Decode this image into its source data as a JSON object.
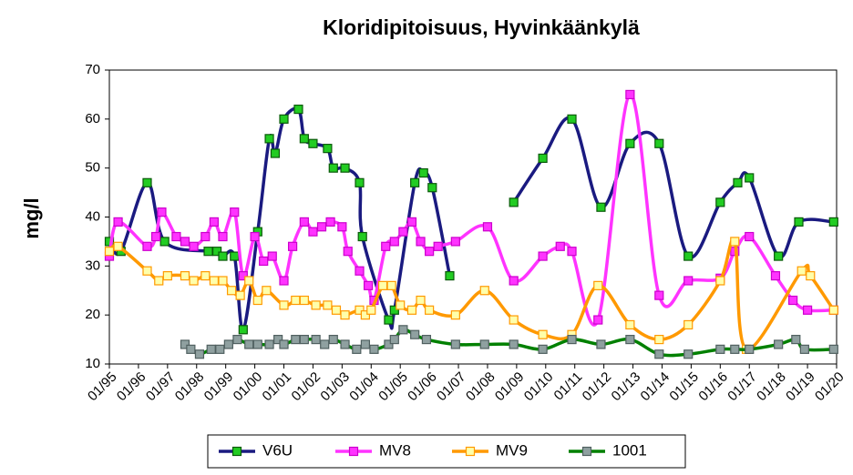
{
  "chart_data": {
    "type": "line",
    "title": "Kloridipitoisuus, Hyvinkäänkylä",
    "y_label": "mg/l",
    "xlim": [
      1995,
      2020
    ],
    "ylim": [
      10,
      70
    ],
    "yticks": [
      10,
      20,
      30,
      40,
      50,
      60,
      70
    ],
    "xticks": [
      {
        "value": 1995,
        "label": "01/95"
      },
      {
        "value": 1996,
        "label": "01/96"
      },
      {
        "value": 1997,
        "label": "01/97"
      },
      {
        "value": 1998,
        "label": "01/98"
      },
      {
        "value": 1999,
        "label": "01/99"
      },
      {
        "value": 2000,
        "label": "01/00"
      },
      {
        "value": 2001,
        "label": "01/01"
      },
      {
        "value": 2002,
        "label": "01/02"
      },
      {
        "value": 2003,
        "label": "01/03"
      },
      {
        "value": 2004,
        "label": "01/04"
      },
      {
        "value": 2005,
        "label": "01/05"
      },
      {
        "value": 2006,
        "label": "01/06"
      },
      {
        "value": 2007,
        "label": "01/07"
      },
      {
        "value": 2008,
        "label": "01/08"
      },
      {
        "value": 2009,
        "label": "01/09"
      },
      {
        "value": 2010,
        "label": "01/10"
      },
      {
        "value": 2011,
        "label": "01/11"
      },
      {
        "value": 2012,
        "label": "01/12"
      },
      {
        "value": 2013,
        "label": "01/13"
      },
      {
        "value": 2014,
        "label": "01/14"
      },
      {
        "value": 2015,
        "label": "01/15"
      },
      {
        "value": 2016,
        "label": "01/16"
      },
      {
        "value": 2017,
        "label": "01/17"
      },
      {
        "value": 2018,
        "label": "01/18"
      },
      {
        "value": 2019,
        "label": "01/19"
      },
      {
        "value": 2020,
        "label": "01/20"
      }
    ],
    "series": [
      {
        "name": "V6U",
        "color": "#1a1a80",
        "marker_fill": "#22cc22",
        "marker_stroke": "#0a5a0a",
        "x": [
          1995.0,
          1995.4,
          1996.3,
          1996.9,
          1998.4,
          1998.7,
          1998.9,
          1999.3,
          1999.6,
          2000.1,
          2000.5,
          2000.7,
          2001.0,
          2001.5,
          2001.7,
          2002.0,
          2002.5,
          2002.7,
          2003.1,
          2003.6,
          2003.7,
          2004.6,
          2004.8,
          2005.5,
          2005.8,
          2006.1,
          2006.7,
          null,
          2008.9,
          2009.9,
          2010.9,
          2011.9,
          2012.9,
          2013.9,
          2014.9,
          2016.0,
          2016.6,
          2017.0,
          2018.0,
          2018.7,
          2019.9
        ],
        "values": [
          35,
          33,
          47,
          35,
          33,
          33,
          32,
          32,
          17,
          37,
          56,
          53,
          60,
          62,
          56,
          55,
          54,
          50,
          50,
          47,
          36,
          19,
          21,
          47,
          49,
          46,
          28,
          null,
          43,
          52,
          60,
          42,
          55,
          55,
          32,
          43,
          47,
          48,
          32,
          39,
          39
        ]
      },
      {
        "name": "MV8",
        "color": "#ff33ff",
        "marker_fill": "#ff33ff",
        "marker_stroke": "#cc00cc",
        "x": [
          1995.0,
          1995.3,
          1996.3,
          1996.6,
          1996.8,
          1997.3,
          1997.6,
          1997.9,
          1998.3,
          1998.6,
          1998.9,
          1999.3,
          1999.6,
          2000.0,
          2000.3,
          2000.6,
          2001.0,
          2001.3,
          2001.7,
          2002.0,
          2002.3,
          2002.6,
          2003.0,
          2003.2,
          2003.6,
          2003.9,
          2004.1,
          2004.5,
          2004.8,
          2005.1,
          2005.4,
          2005.7,
          2006.0,
          2006.3,
          2006.9,
          2008.0,
          2008.9,
          2009.9,
          2010.5,
          2010.9,
          2011.8,
          2012.9,
          2013.9,
          2014.9,
          2016.0,
          2016.5,
          2017.0,
          2017.9,
          2018.5,
          2019.0,
          2019.9
        ],
        "values": [
          32,
          39,
          34,
          36,
          41,
          36,
          35,
          34,
          36,
          39,
          36,
          41,
          28,
          36,
          31,
          32,
          27,
          34,
          39,
          37,
          38,
          39,
          38,
          33,
          29,
          26,
          23,
          34,
          35,
          37,
          39,
          35,
          33,
          34,
          35,
          38,
          27,
          32,
          34,
          33,
          19,
          65,
          24,
          27,
          27.5,
          33,
          36,
          28,
          23,
          21,
          21
        ]
      },
      {
        "name": "MV9",
        "color": "#ff9900",
        "marker_fill": "#ffffaa",
        "marker_stroke": "#ff9900",
        "x": [
          1995.0,
          1995.3,
          1996.3,
          1996.7,
          1997.0,
          1997.6,
          1997.9,
          1998.3,
          1998.6,
          1998.9,
          1999.2,
          1999.5,
          1999.8,
          2000.1,
          2000.4,
          2001.0,
          2001.4,
          2001.7,
          2002.1,
          2002.5,
          2002.8,
          2003.1,
          2003.6,
          2003.8,
          2004.0,
          2004.4,
          2004.7,
          2005.0,
          2005.4,
          2005.7,
          2006.0,
          2006.9,
          2007.9,
          2008.9,
          2009.9,
          2010.9,
          2011.8,
          2012.9,
          2013.9,
          2014.9,
          2016.0,
          2016.5,
          2016.9,
          2018.8,
          2019.1,
          2019.9
        ],
        "values": [
          33,
          34,
          29,
          27,
          28,
          28,
          27,
          28,
          27,
          27,
          25,
          24,
          27,
          23,
          25,
          22,
          23,
          23,
          22,
          22,
          21,
          20,
          21,
          20,
          21,
          26,
          26,
          22,
          21,
          23,
          21,
          20,
          25,
          19,
          16,
          16,
          26,
          18,
          15,
          18,
          27,
          35,
          13,
          29,
          28,
          21
        ]
      },
      {
        "name": "1001",
        "color": "#008000",
        "marker_fill": "#8fa0a0",
        "marker_stroke": "#506060",
        "x": [
          1997.6,
          1997.8,
          1998.1,
          1998.5,
          1998.8,
          1999.1,
          1999.4,
          1999.8,
          2000.1,
          2000.5,
          2000.8,
          2001.0,
          2001.4,
          2001.7,
          2002.1,
          2002.4,
          2002.7,
          2003.1,
          2003.5,
          2003.8,
          2004.1,
          2004.6,
          2004.8,
          2005.1,
          2005.5,
          2005.9,
          2006.9,
          2007.9,
          2008.9,
          2009.9,
          2010.9,
          2011.9,
          2012.9,
          2013.9,
          2014.9,
          2016.0,
          2016.5,
          2017.0,
          2018.0,
          2018.6,
          2018.9,
          2019.9
        ],
        "values": [
          14,
          13,
          12,
          13,
          13,
          14,
          15,
          14,
          14,
          14,
          15,
          14,
          15,
          15,
          15,
          14,
          15,
          14,
          13,
          14,
          13,
          14,
          15,
          17,
          16,
          15,
          14,
          14,
          14,
          13,
          15,
          14,
          15,
          12,
          12,
          13,
          13,
          13,
          14,
          15,
          13,
          13
        ]
      }
    ]
  }
}
